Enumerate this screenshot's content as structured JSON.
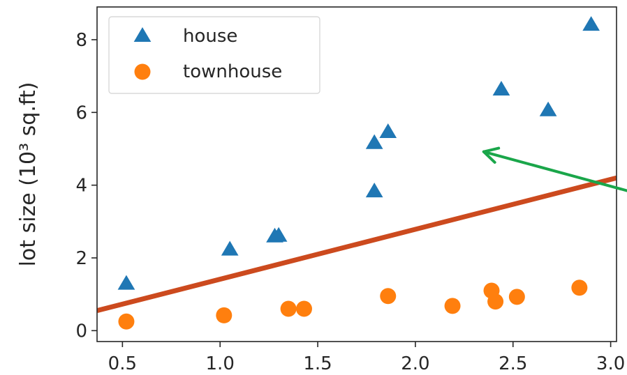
{
  "chart_data": {
    "type": "scatter",
    "title": "",
    "xlabel": "",
    "ylabel": "lot size (10³ sq.ft)",
    "xlim": [
      0.37,
      3.03
    ],
    "ylim": [
      -0.3,
      8.9
    ],
    "xticks": [
      0.5,
      1.0,
      1.5,
      2.0,
      2.5,
      3.0
    ],
    "xtick_labels": [
      "0.5",
      "1.0",
      "1.5",
      "2.0",
      "2.5",
      "3.0"
    ],
    "yticks": [
      0,
      2,
      4,
      6,
      8
    ],
    "ytick_labels": [
      "0",
      "2",
      "4",
      "6",
      "8"
    ],
    "grid": false,
    "legend_position": "top-left",
    "series": [
      {
        "name": "house",
        "marker": "triangle",
        "color": "#1f77b4",
        "points": [
          [
            0.52,
            1.28
          ],
          [
            1.05,
            2.22
          ],
          [
            1.28,
            2.58
          ],
          [
            1.3,
            2.6
          ],
          [
            1.79,
            3.82
          ],
          [
            1.79,
            5.15
          ],
          [
            1.86,
            5.45
          ],
          [
            2.44,
            6.62
          ],
          [
            2.68,
            6.05
          ],
          [
            2.9,
            8.4
          ]
        ]
      },
      {
        "name": "townhouse",
        "marker": "circle",
        "color": "#ff7f0e",
        "points": [
          [
            0.52,
            0.25
          ],
          [
            1.02,
            0.42
          ],
          [
            1.35,
            0.6
          ],
          [
            1.43,
            0.6
          ],
          [
            1.86,
            0.95
          ],
          [
            2.19,
            0.68
          ],
          [
            2.39,
            1.1
          ],
          [
            2.41,
            0.8
          ],
          [
            2.52,
            0.93
          ],
          [
            2.84,
            1.18
          ]
        ]
      }
    ],
    "decision_line": {
      "color": "#cc4a1e",
      "from": [
        0.37,
        0.55
      ],
      "to": [
        3.03,
        4.2
      ]
    },
    "annotation_arrow": {
      "color": "#1aa64a",
      "from": [
        3.03,
        3.92
      ],
      "to": [
        2.35,
        4.92
      ]
    }
  }
}
